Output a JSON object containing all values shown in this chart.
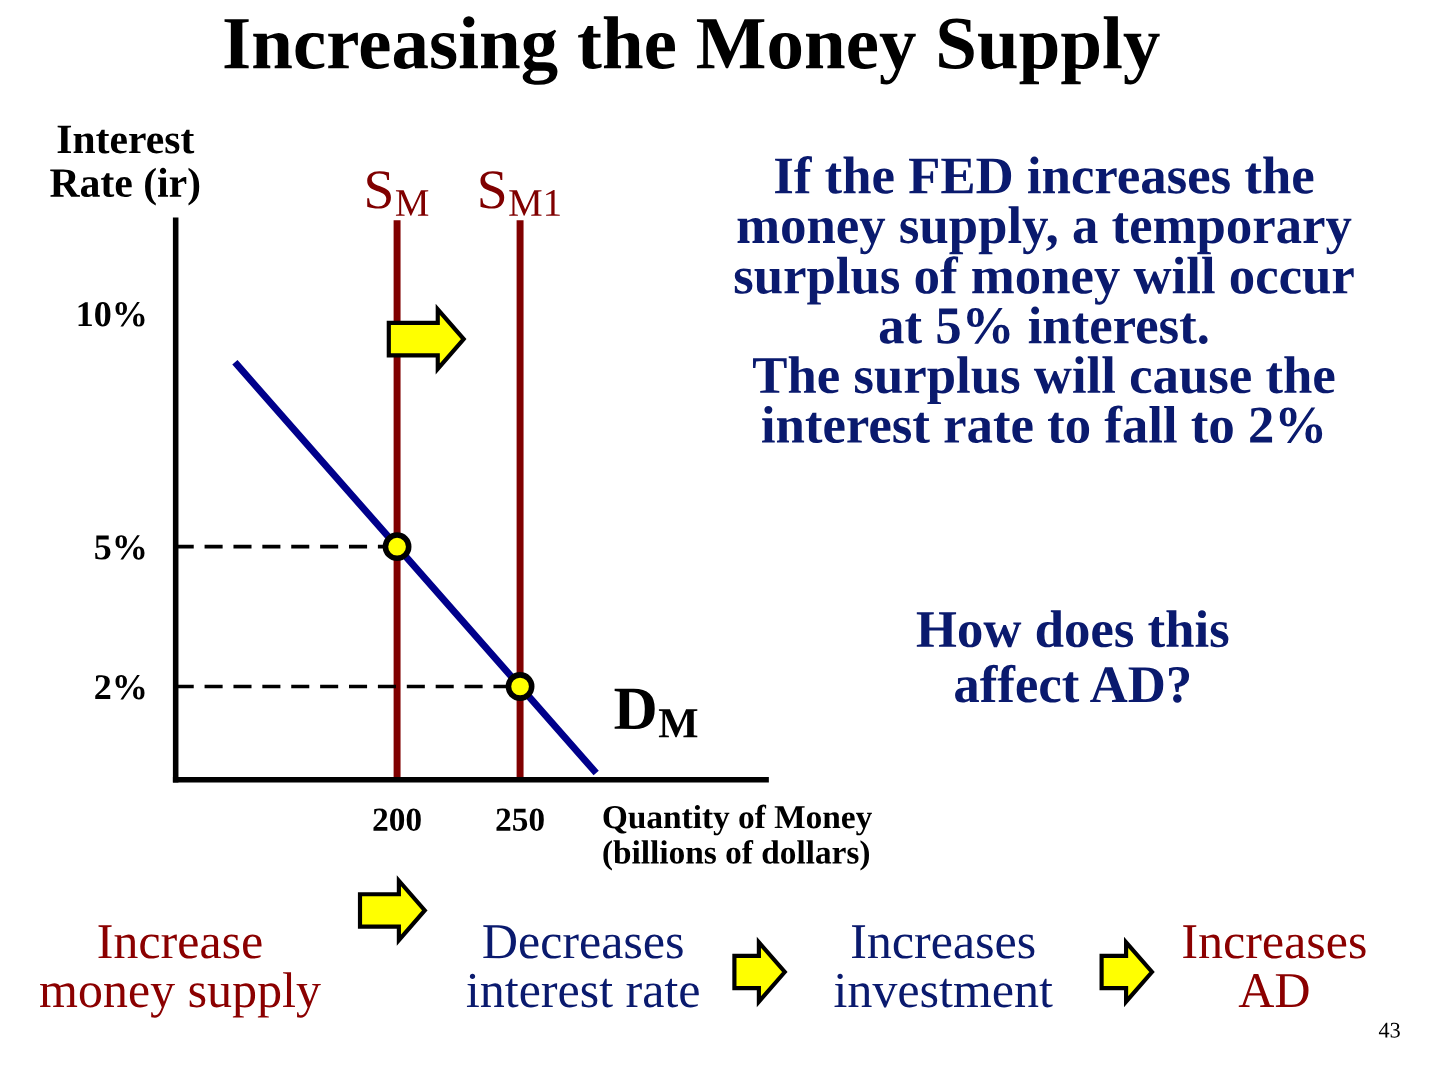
{
  "chart_data": {
    "type": "line",
    "title": "Increasing the Money Supply",
    "xlabel": "Quantity of Money\n(billions of dollars)",
    "ylabel": "Interest\nRate (ir)",
    "xlim": [
      110,
      350
    ],
    "ylim": [
      0,
      12
    ],
    "xticks": [
      200,
      250
    ],
    "yticks": [
      {
        "value": 10,
        "label": "10%"
      },
      {
        "value": 5,
        "label": "5%"
      },
      {
        "value": 2,
        "label": "2%"
      }
    ],
    "grid": false,
    "legend": false,
    "series": [
      {
        "name": "S$_{M}$",
        "color": "#800000",
        "x": [
          200,
          200
        ],
        "values": [
          0,
          12
        ]
      },
      {
        "name": "S$_{M1}$",
        "color": "#800000",
        "x": [
          250,
          250
        ],
        "values": [
          0,
          12
        ]
      },
      {
        "name": "D$_{M}$",
        "color": "#00008b",
        "x": [
          135,
          280
        ],
        "values": [
          8.9,
          0.2
        ]
      },
      {
        "color": "#000000",
        "line_style": "dashed",
        "x": [
          110,
          200
        ],
        "values": [
          5,
          5
        ]
      },
      {
        "color": "#000000",
        "line_style": "dashed",
        "x": [
          110,
          250
        ],
        "values": [
          2,
          2
        ]
      },
      {
        "type": "scatter",
        "color": "#ffff00",
        "marker": "circle",
        "x": [
          200,
          250
        ],
        "values": [
          5,
          2
        ]
      }
    ],
    "annotations": [
      "If the FED increases the\nmoney supply, a temporary\nsurplus of money will occur\nat 5% interest.\nThe surplus will cause the\ninterest rate to fall to 2%",
      "How does this\naffect AD?",
      "Increase\nmoney supply",
      "Decreases\ninterest rate",
      "Increases\ninvestment",
      "Increases\nAD",
      "43"
    ]
  }
}
